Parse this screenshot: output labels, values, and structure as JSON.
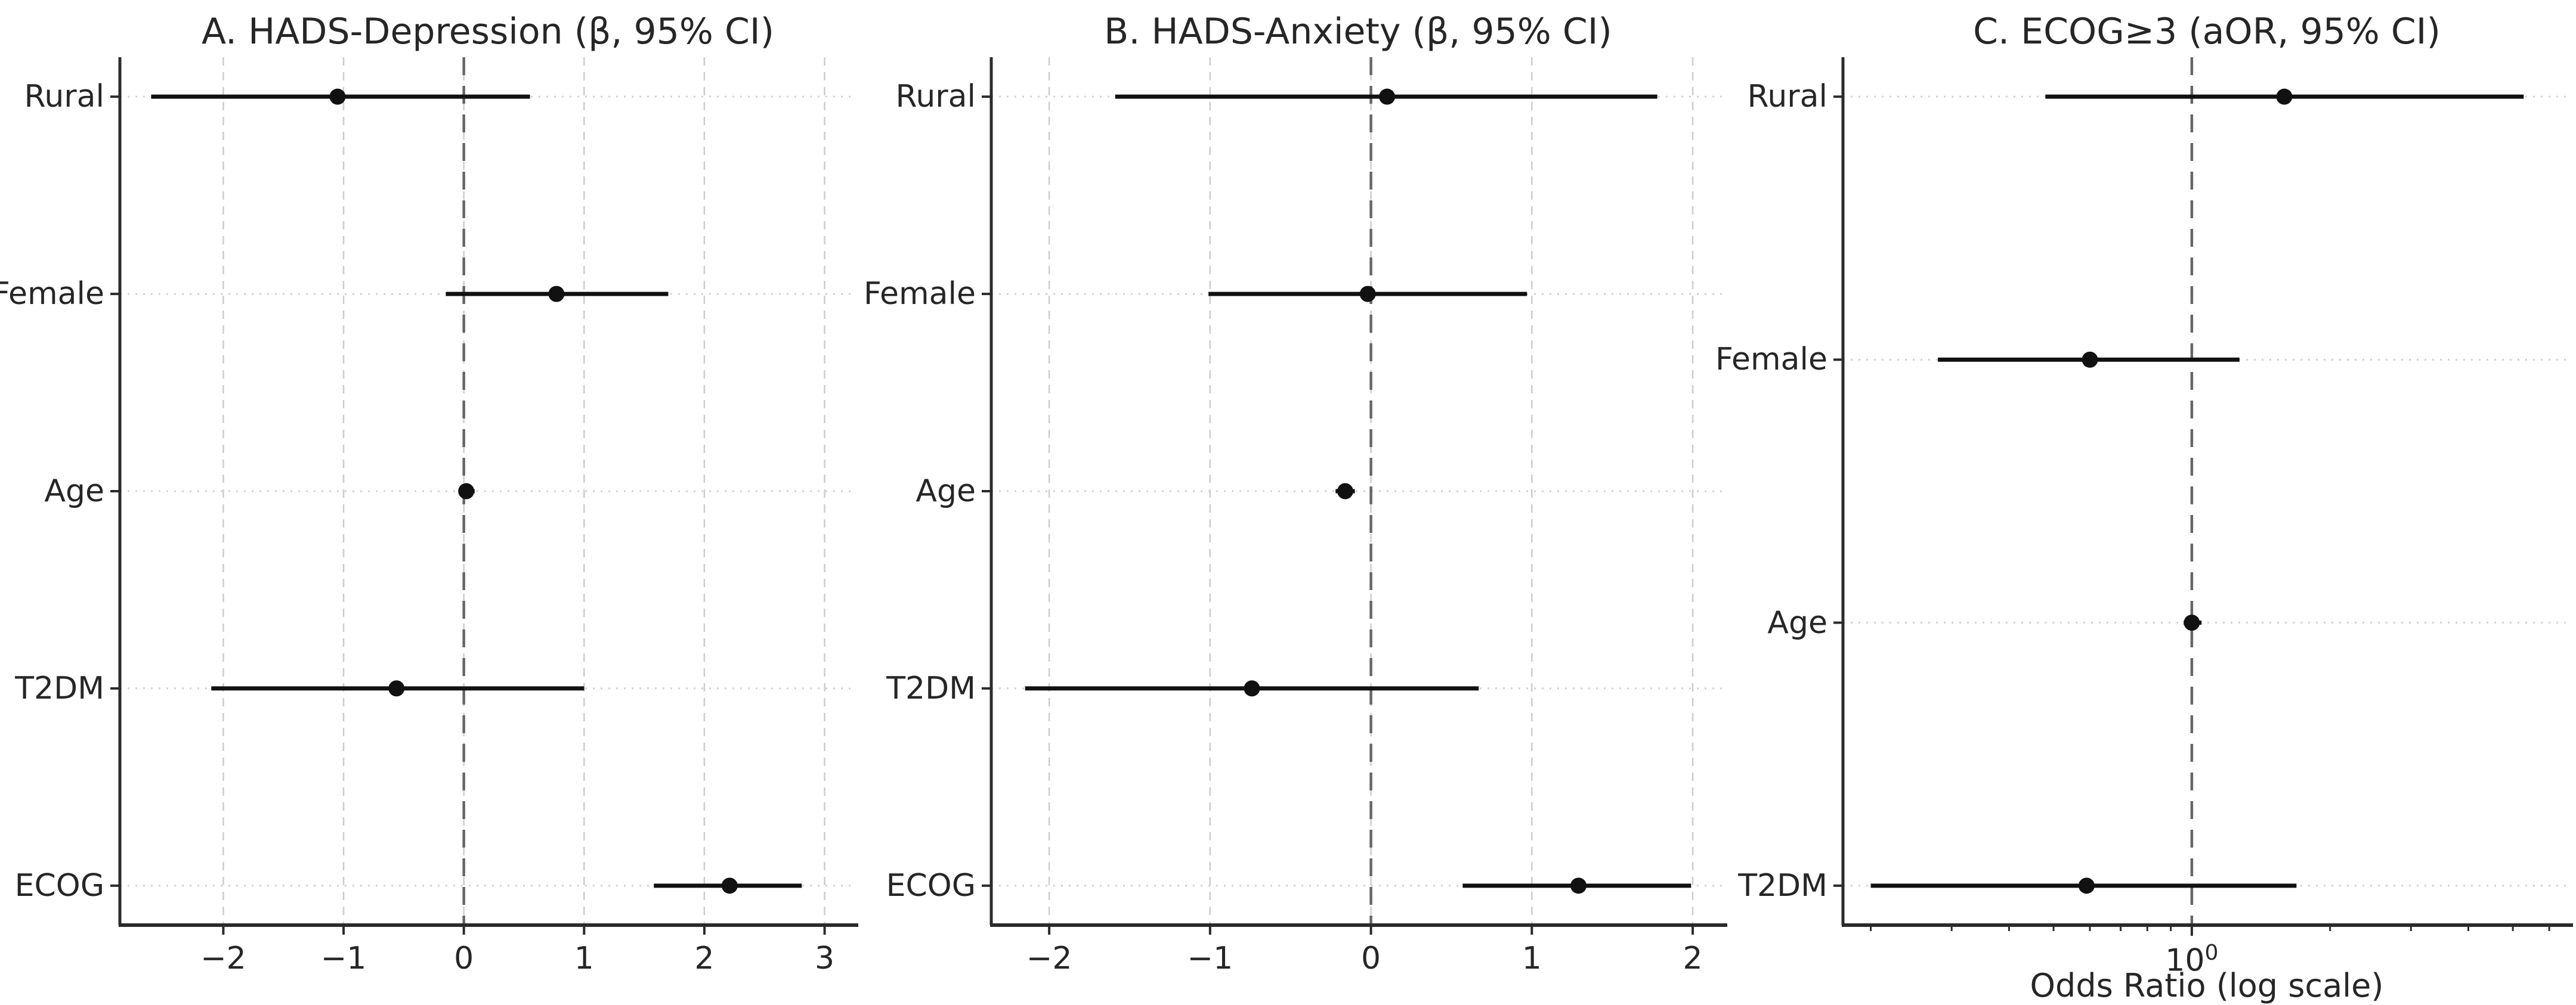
{
  "figure": {
    "background": "#ffffff",
    "text_color": "#262626",
    "data_color": "#111111",
    "grid_color": "#cccccc",
    "dotted_row_color": "#d2d2d2",
    "refline_color": "#666666",
    "spine_color": "#2b2b2b"
  },
  "chart_data": [
    {
      "type": "scatter",
      "subtype": "forest",
      "panel_letter": "A",
      "title": "A. HADS-Depression (β, 95% CI)",
      "xscale": "linear",
      "xlim": [
        -2.86,
        3.26
      ],
      "xticks": [
        -2,
        -1,
        0,
        1,
        2,
        3
      ],
      "xtick_labels": [
        "−2",
        "−1",
        "0",
        "1",
        "2",
        "3"
      ],
      "refline_x": 0,
      "xlabel": "",
      "grid": "dashed vertical at ticks, dotted horizontal at rows",
      "legend": "none",
      "categories": [
        "Rural",
        "Female",
        "Age",
        "T2DM",
        "ECOG"
      ],
      "rows": [
        {
          "label": "Rural",
          "est": -1.05,
          "lo": -2.6,
          "hi": 0.55
        },
        {
          "label": "Female",
          "est": 0.77,
          "lo": -0.15,
          "hi": 1.7
        },
        {
          "label": "Age",
          "est": 0.02,
          "lo": -0.04,
          "hi": 0.09
        },
        {
          "label": "T2DM",
          "est": -0.56,
          "lo": -2.1,
          "hi": 1.0
        },
        {
          "label": "ECOG",
          "est": 2.21,
          "lo": 1.58,
          "hi": 2.81
        }
      ]
    },
    {
      "type": "scatter",
      "subtype": "forest",
      "panel_letter": "B",
      "title": "B. HADS-Anxiety (β, 95% CI)",
      "xscale": "linear",
      "xlim": [
        -2.36,
        2.2
      ],
      "xticks": [
        -2,
        -1,
        0,
        1,
        2
      ],
      "xtick_labels": [
        "−2",
        "−1",
        "0",
        "1",
        "2"
      ],
      "refline_x": 0,
      "xlabel": "",
      "grid": "dashed vertical at ticks, dotted horizontal at rows",
      "legend": "none",
      "categories": [
        "Rural",
        "Female",
        "Age",
        "T2DM",
        "ECOG"
      ],
      "rows": [
        {
          "label": "Rural",
          "est": 0.1,
          "lo": -1.59,
          "hi": 1.78
        },
        {
          "label": "Female",
          "est": -0.02,
          "lo": -1.01,
          "hi": 0.97
        },
        {
          "label": "Age",
          "est": -0.16,
          "lo": -0.22,
          "hi": -0.1
        },
        {
          "label": "T2DM",
          "est": -0.74,
          "lo": -2.15,
          "hi": 0.67
        },
        {
          "label": "ECOG",
          "est": 1.29,
          "lo": 0.57,
          "hi": 1.99
        }
      ]
    },
    {
      "type": "scatter",
      "subtype": "forest",
      "panel_letter": "C",
      "title": "C. ECOG≥3 (aOR, 95% CI)",
      "xscale": "log",
      "xlim": [
        0.174,
        6.68
      ],
      "xticks": [
        1
      ],
      "major_tick": {
        "value": 1,
        "base": "10",
        "exponent": "0"
      },
      "minor_ticks": [
        0.2,
        0.3,
        0.4,
        0.5,
        0.6,
        0.7,
        0.8,
        0.9,
        2,
        3,
        4,
        5,
        6
      ],
      "refline_x": 1,
      "xlabel": "Odds Ratio (log scale)",
      "grid": "dotted horizontal at rows only",
      "legend": "none",
      "categories": [
        "Rural",
        "Female",
        "Age",
        "T2DM"
      ],
      "rows": [
        {
          "label": "Rural",
          "est": 1.59,
          "lo": 0.48,
          "hi": 5.28
        },
        {
          "label": "Female",
          "est": 0.6,
          "lo": 0.28,
          "hi": 1.27
        },
        {
          "label": "Age",
          "est": 1.0,
          "lo": 0.96,
          "hi": 1.05
        },
        {
          "label": "T2DM",
          "est": 0.59,
          "lo": 0.2,
          "hi": 1.69
        }
      ]
    }
  ]
}
